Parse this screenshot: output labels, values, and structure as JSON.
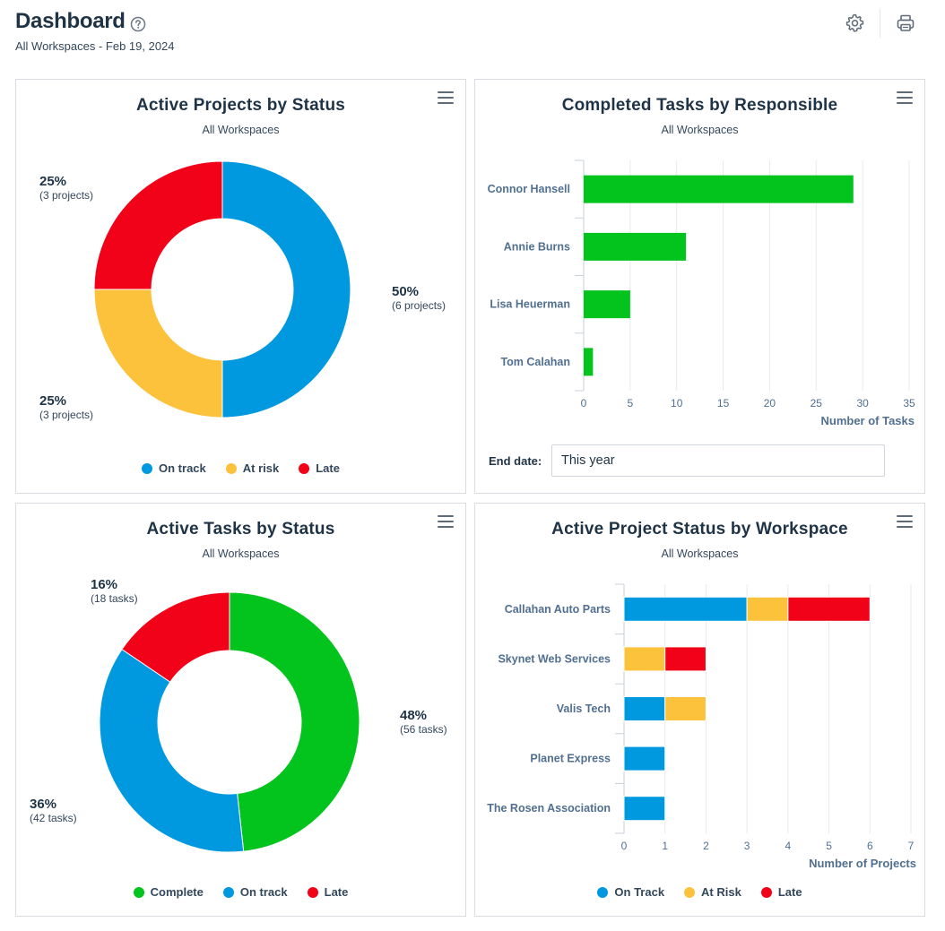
{
  "header": {
    "title": "Dashboard",
    "subtitle": "All Workspaces - Feb 19, 2024",
    "help_icon": "question-circle-icon",
    "settings_icon": "gear-icon",
    "print_icon": "printer-icon"
  },
  "colors": {
    "blue": "#0099e0",
    "yellow": "#fcc23c",
    "red": "#f10219",
    "green": "#02c41c"
  },
  "projects_status": {
    "title": "Active Projects by Status",
    "subtitle": "All Workspaces",
    "chart_data": {
      "type": "pie",
      "title": "Active Projects by Status",
      "slices": [
        {
          "name": "On track",
          "value": 6,
          "percent_label": "50%",
          "count_label": "(6 projects)",
          "color": "#0099e0"
        },
        {
          "name": "At risk",
          "value": 3,
          "percent_label": "25%",
          "count_label": "(3 projects)",
          "color": "#fcc23c"
        },
        {
          "name": "Late",
          "value": 3,
          "percent_label": "25%",
          "count_label": "(3 projects)",
          "color": "#f10219"
        }
      ]
    },
    "legend": [
      {
        "label": "On track",
        "color": "#0099e0"
      },
      {
        "label": "At risk",
        "color": "#fcc23c"
      },
      {
        "label": "Late",
        "color": "#f10219"
      }
    ]
  },
  "completed_tasks": {
    "title": "Completed Tasks by Responsible",
    "subtitle": "All Workspaces",
    "end_date_label": "End date:",
    "end_date_value": "This year",
    "chart_data": {
      "type": "bar",
      "orientation": "horizontal",
      "categories": [
        "Connor Hansell",
        "Annie Burns",
        "Lisa Heuerman",
        "Tom Calahan"
      ],
      "values": [
        29,
        11,
        5,
        1
      ],
      "xlabel": "Number of Tasks",
      "xlim": [
        0,
        35
      ],
      "ticks": [
        0,
        5,
        10,
        15,
        20,
        25,
        30,
        35
      ],
      "color": "#02c41c"
    }
  },
  "tasks_status": {
    "title": "Active Tasks by Status",
    "subtitle": "All Workspaces",
    "chart_data": {
      "type": "pie",
      "title": "Active Tasks by Status",
      "slices": [
        {
          "name": "Complete",
          "value": 56,
          "percent_label": "48%",
          "count_label": "(56 tasks)",
          "color": "#02c41c"
        },
        {
          "name": "On track",
          "value": 42,
          "percent_label": "36%",
          "count_label": "(42 tasks)",
          "color": "#0099e0"
        },
        {
          "name": "Late",
          "value": 18,
          "percent_label": "16%",
          "count_label": "(18 tasks)",
          "color": "#f10219"
        }
      ]
    },
    "legend": [
      {
        "label": "Complete",
        "color": "#02c41c"
      },
      {
        "label": "On track",
        "color": "#0099e0"
      },
      {
        "label": "Late",
        "color": "#f10219"
      }
    ]
  },
  "workspace_status": {
    "title": "Active Project Status by Workspace",
    "subtitle": "All Workspaces",
    "chart_data": {
      "type": "bar",
      "orientation": "horizontal",
      "stacked": true,
      "categories": [
        "Callahan Auto Parts",
        "Skynet Web Services",
        "Valis Tech",
        "Planet Express",
        "The Rosen Association"
      ],
      "series": [
        {
          "name": "On Track",
          "values": [
            3,
            0,
            1,
            1,
            1
          ],
          "color": "#0099e0"
        },
        {
          "name": "At Risk",
          "values": [
            1,
            1,
            1,
            0,
            0
          ],
          "color": "#fcc23c"
        },
        {
          "name": "Late",
          "values": [
            2,
            1,
            0,
            0,
            0
          ],
          "color": "#f10219"
        }
      ],
      "xlabel": "Number of Projects",
      "xlim": [
        0,
        7
      ],
      "ticks": [
        0,
        1,
        2,
        3,
        4,
        5,
        6,
        7
      ]
    },
    "legend": [
      {
        "label": "On Track",
        "color": "#0099e0"
      },
      {
        "label": "At Risk",
        "color": "#fcc23c"
      },
      {
        "label": "Late",
        "color": "#f10219"
      }
    ]
  }
}
